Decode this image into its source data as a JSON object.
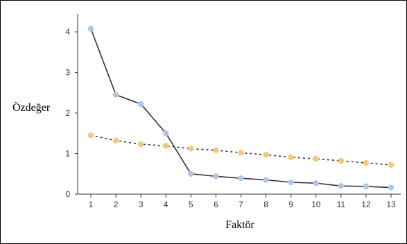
{
  "chart_data": {
    "type": "line",
    "xlabel": "Faktör",
    "ylabel": "Özdeğer",
    "x": [
      1,
      2,
      3,
      4,
      5,
      6,
      7,
      8,
      9,
      10,
      11,
      12,
      13
    ],
    "xticks": [
      "1",
      "2",
      "3",
      "4",
      "5",
      "6",
      "7",
      "8",
      "9",
      "10",
      "11",
      "12",
      "13"
    ],
    "yticks": [
      "0",
      "1",
      "2",
      "3",
      "4"
    ],
    "ylim": [
      0,
      4.2
    ],
    "grid": false,
    "legend": "none",
    "series": [
      {
        "values": [
          4.08,
          2.45,
          2.22,
          1.5,
          0.5,
          0.44,
          0.39,
          0.35,
          0.29,
          0.27,
          0.2,
          0.19,
          0.16
        ],
        "line_style": "solid",
        "line_color": "#333333",
        "marker_color": "#aec7e8"
      },
      {
        "values": [
          1.45,
          1.32,
          1.23,
          1.19,
          1.12,
          1.08,
          1.02,
          0.97,
          0.91,
          0.87,
          0.82,
          0.77,
          0.72
        ],
        "line_style": "dotted",
        "line_color": "#333333",
        "marker_color": "#f5c97a"
      }
    ]
  }
}
